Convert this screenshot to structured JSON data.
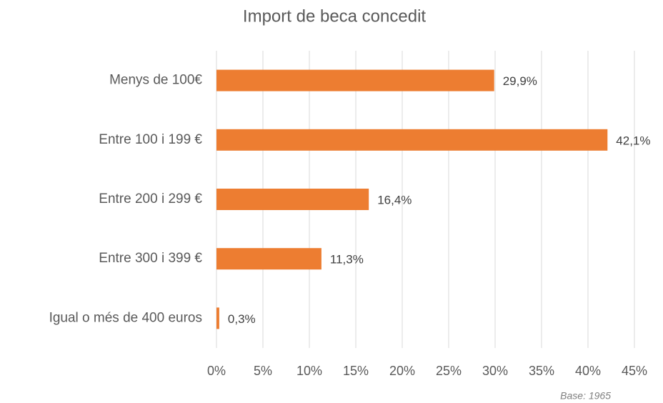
{
  "chart_data": {
    "type": "bar",
    "orientation": "horizontal",
    "title": "Import de beca concedit",
    "categories": [
      "Menys de 100€",
      "Entre 100 i 199 €",
      "Entre 200 i 299 €",
      "Entre 300 i 399 €",
      "Igual o més de 400 euros"
    ],
    "values": [
      29.9,
      42.1,
      16.4,
      11.3,
      0.3
    ],
    "value_labels": [
      "29,9%",
      "42,1%",
      "16,4%",
      "11,3%",
      "0,3%"
    ],
    "color": "#ed7d31",
    "xlim": [
      0,
      45
    ],
    "xticks": [
      {
        "value": 0,
        "label": "0%"
      },
      {
        "value": 5,
        "label": "5%"
      },
      {
        "value": 10,
        "label": "10%"
      },
      {
        "value": 15,
        "label": "15%"
      },
      {
        "value": 20,
        "label": "20%"
      },
      {
        "value": 25,
        "label": "25%"
      },
      {
        "value": 30,
        "label": "30%"
      },
      {
        "value": 35,
        "label": "35%"
      },
      {
        "value": 40,
        "label": "40%"
      },
      {
        "value": 45,
        "label": "45%"
      }
    ],
    "grid": true,
    "annotation": "Base: 1965"
  }
}
